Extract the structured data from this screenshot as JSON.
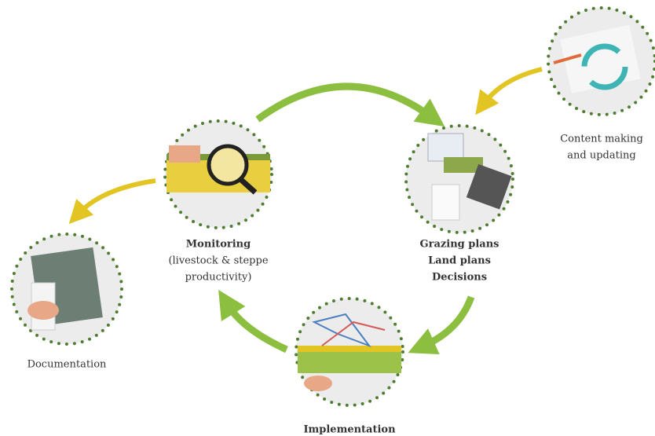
{
  "nodes": [
    {
      "label": [
        "Content making",
        "and updating"
      ]
    },
    {
      "label": [
        "Grazing plans",
        "Land plans",
        "Decisions"
      ]
    },
    {
      "label": [
        "Monitoring",
        "(livestock & steppe",
        "productivity)"
      ]
    },
    {
      "label": [
        "Documentation"
      ]
    },
    {
      "label": [
        "Implementation"
      ]
    }
  ]
}
